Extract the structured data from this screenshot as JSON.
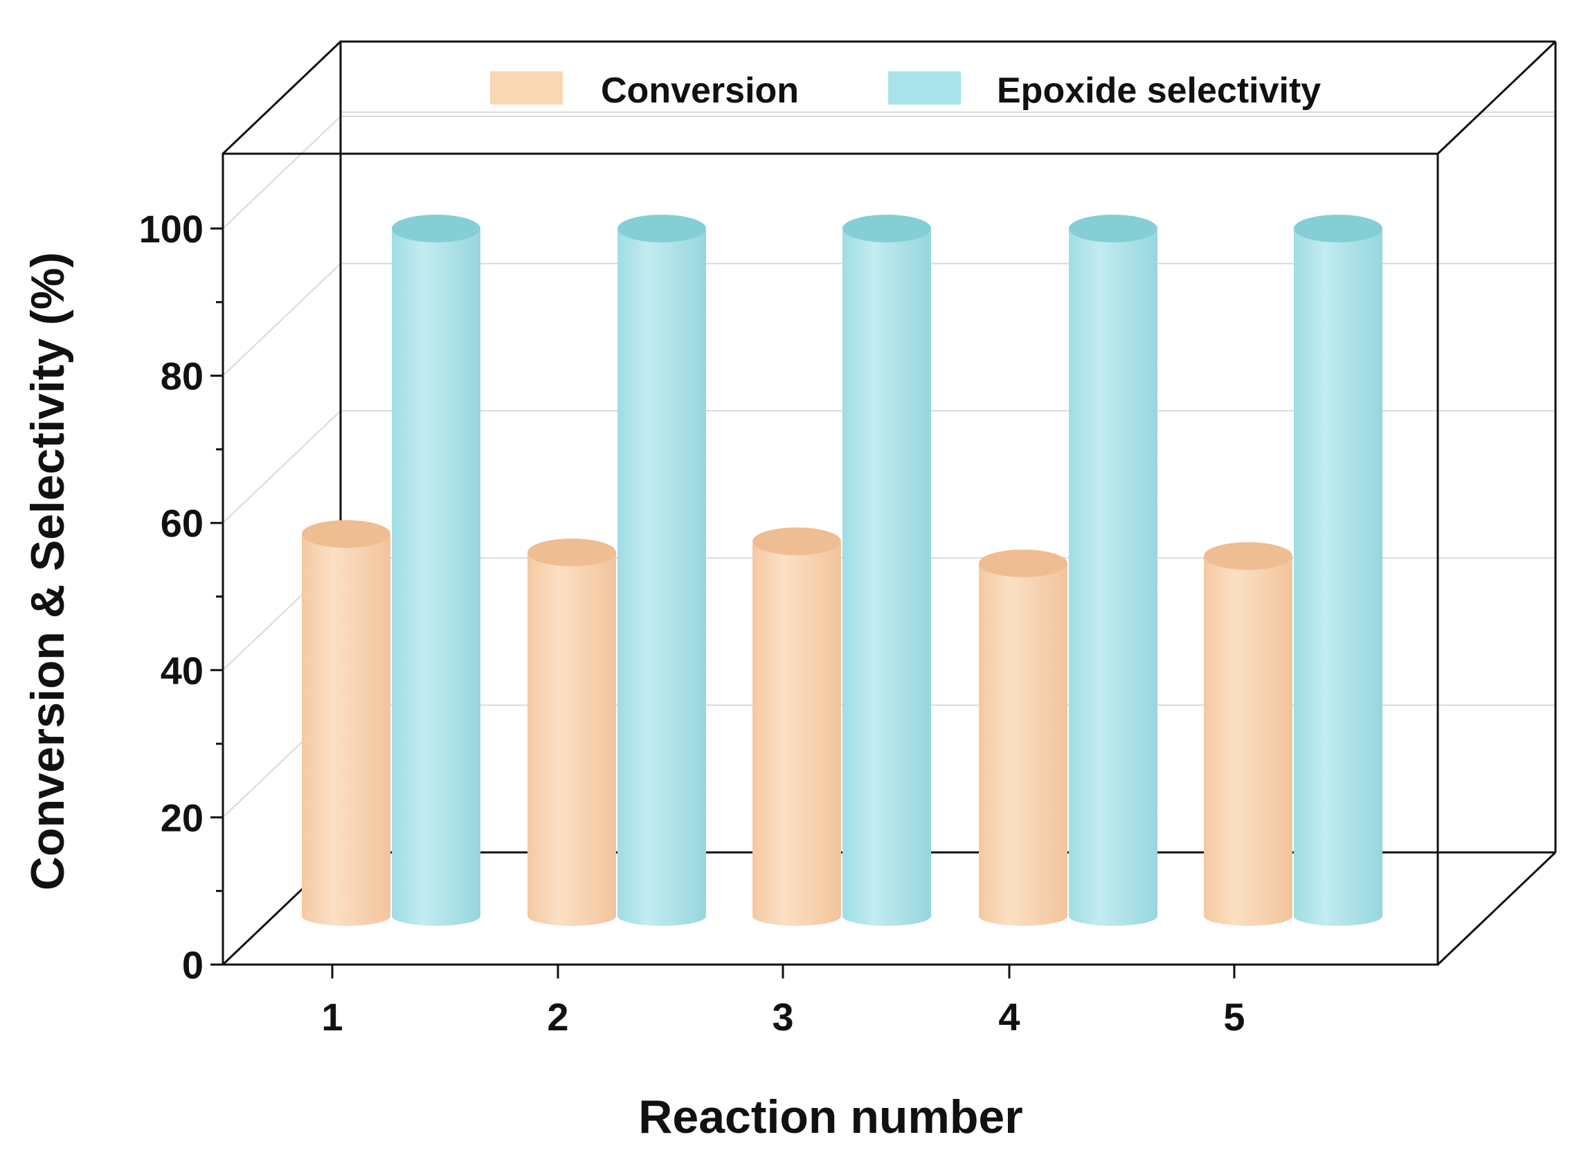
{
  "chart_data": {
    "type": "bar",
    "style": "3d-cylinder",
    "categories": [
      "1",
      "2",
      "3",
      "4",
      "5"
    ],
    "series": [
      {
        "name": "Conversion",
        "values": [
          58.5,
          56,
          57.5,
          54.5,
          55.5
        ],
        "color": "#f9d7b4",
        "top_color": "#efbd92"
      },
      {
        "name": "Epoxide selectivity",
        "values": [
          100,
          100,
          100,
          100,
          100
        ],
        "color": "#a9e3ea",
        "top_color": "#84cfd6"
      }
    ],
    "xlabel": "Reaction number",
    "ylabel": "Conversion & Selectivity (%)",
    "ylim": [
      0,
      110
    ],
    "yticks": [
      0,
      20,
      40,
      60,
      80,
      100
    ],
    "grid": true,
    "legend": "top"
  }
}
